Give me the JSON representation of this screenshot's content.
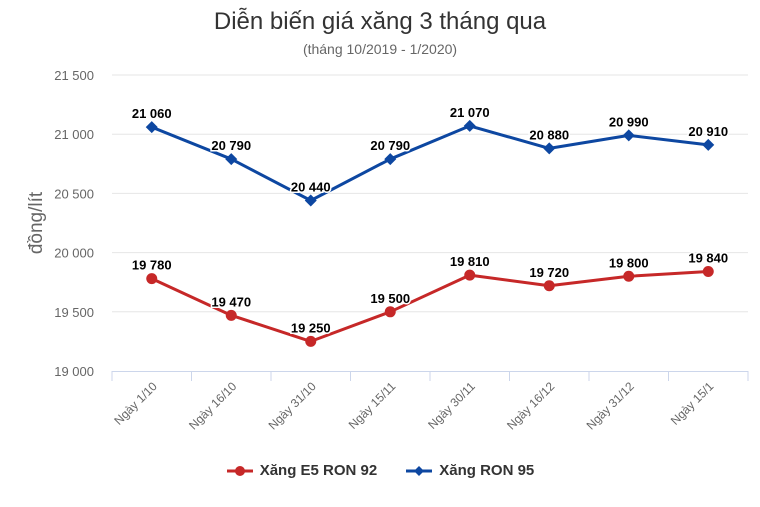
{
  "header": {
    "title": "Diễn biến giá xăng 3 tháng qua",
    "subtitle": "(tháng 10/2019 - 1/2020)"
  },
  "y_axis": {
    "label": "đồng/lít",
    "ticks": [
      "21 500",
      "21 000",
      "20 500",
      "20 000",
      "19 500",
      "19 000"
    ]
  },
  "x_axis": {
    "ticks": [
      "Ngày 1/10",
      "Ngày 16/10",
      "Ngày 31/10",
      "Ngày 15/11",
      "Ngày 30/11",
      "Ngày 16/12",
      "Ngày 31/12",
      "Ngày 15/1"
    ]
  },
  "legend": {
    "items": [
      {
        "label": "Xăng E5 RON 92",
        "color": "#c62828",
        "marker": "circle"
      },
      {
        "label": "Xăng RON 95",
        "color": "#0d47a1",
        "marker": "diamond"
      }
    ]
  },
  "chart_data": {
    "type": "line",
    "title": "Diễn biến giá xăng 3 tháng qua",
    "subtitle": "(tháng 10/2019 - 1/2020)",
    "xlabel": "",
    "ylabel": "đồng/lít",
    "ylim": [
      19000,
      21500
    ],
    "grid": true,
    "legend_position": "bottom",
    "categories": [
      "Ngày 1/10",
      "Ngày 16/10",
      "Ngày 31/10",
      "Ngày 15/11",
      "Ngày 30/11",
      "Ngày 16/12",
      "Ngày 31/12",
      "Ngày 15/1"
    ],
    "series": [
      {
        "name": "Xăng E5 RON 92",
        "color": "#c62828",
        "marker": "circle",
        "values": [
          19780,
          19470,
          19250,
          19500,
          19810,
          19720,
          19800,
          19840
        ],
        "labels": [
          "19 780",
          "19 470",
          "19 250",
          "19 500",
          "19 810",
          "19 720",
          "19 800",
          "19 840"
        ]
      },
      {
        "name": "Xăng RON 95",
        "color": "#0d47a1",
        "marker": "diamond",
        "values": [
          21060,
          20790,
          20440,
          20790,
          21070,
          20880,
          20990,
          20910
        ],
        "labels": [
          "21 060",
          "20 790",
          "20 440",
          "20 790",
          "21 070",
          "20 880",
          "20 990",
          "20 910"
        ]
      }
    ]
  }
}
